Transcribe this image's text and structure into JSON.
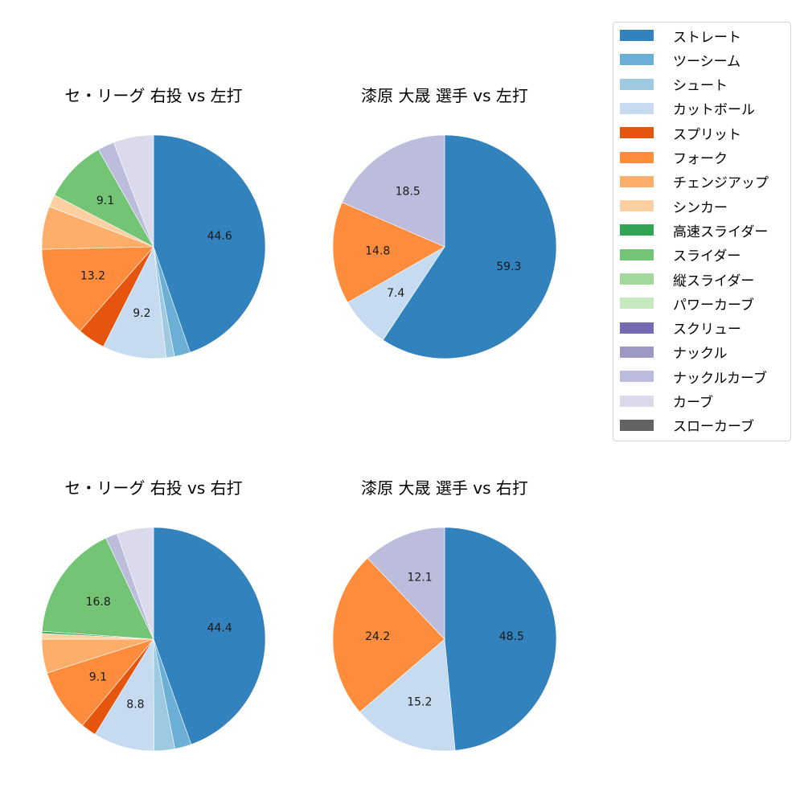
{
  "legend": {
    "items": [
      {
        "label": "ストレート",
        "color": "#3182bd"
      },
      {
        "label": "ツーシーム",
        "color": "#6baed6"
      },
      {
        "label": "シュート",
        "color": "#9ecae1"
      },
      {
        "label": "カットボール",
        "color": "#c6dbef"
      },
      {
        "label": "スプリット",
        "color": "#e6550d"
      },
      {
        "label": "フォーク",
        "color": "#fd8d3c"
      },
      {
        "label": "チェンジアップ",
        "color": "#fdae6b"
      },
      {
        "label": "シンカー",
        "color": "#fdd0a2"
      },
      {
        "label": "高速スライダー",
        "color": "#31a354"
      },
      {
        "label": "スライダー",
        "color": "#74c476"
      },
      {
        "label": "縦スライダー",
        "color": "#a1d99b"
      },
      {
        "label": "パワーカーブ",
        "color": "#c7e9c0"
      },
      {
        "label": "スクリュー",
        "color": "#756bb1"
      },
      {
        "label": "ナックル",
        "color": "#9e9ac8"
      },
      {
        "label": "ナックルカーブ",
        "color": "#bcbddc"
      },
      {
        "label": "カーブ",
        "color": "#dadaeb"
      },
      {
        "label": "スローカーブ",
        "color": "#636363"
      }
    ]
  },
  "panels": [
    {
      "title": "セ・リーグ 右投 vs 左打"
    },
    {
      "title": "漆原 大晟 選手 vs 左打"
    },
    {
      "title": "セ・リーグ 右投 vs 右打"
    },
    {
      "title": "漆原 大晟 選手 vs 右打"
    }
  ],
  "chart_data": [
    {
      "type": "pie",
      "title": "セ・リーグ 右投 vs 左打",
      "categories": [
        "ストレート",
        "ツーシーム",
        "シュート",
        "カットボール",
        "スプリット",
        "フォーク",
        "チェンジアップ",
        "シンカー",
        "スライダー",
        "ナックルカーブ",
        "カーブ"
      ],
      "values": [
        44.6,
        2.3,
        1.2,
        9.2,
        4.0,
        13.2,
        6.2,
        1.8,
        9.1,
        2.4,
        5.8
      ],
      "labels_shown": [
        "44.6",
        "",
        "",
        "9.2",
        "",
        "13.2",
        "",
        "",
        "9.1",
        "",
        ""
      ],
      "start_angle": 90,
      "direction": "clockwise"
    },
    {
      "type": "pie",
      "title": "漆原 大晟 選手 vs 左打",
      "categories": [
        "ストレート",
        "カットボール",
        "フォーク",
        "ナックルカーブ"
      ],
      "values": [
        59.3,
        7.4,
        14.8,
        18.5
      ],
      "labels_shown": [
        "59.3",
        "7.4",
        "14.8",
        "18.5"
      ],
      "start_angle": 90,
      "direction": "clockwise"
    },
    {
      "type": "pie",
      "title": "セ・リーグ 右投 vs 右打",
      "categories": [
        "ストレート",
        "ツーシーム",
        "シュート",
        "カットボール",
        "スプリット",
        "フォーク",
        "チェンジアップ",
        "シンカー",
        "高速スライダー",
        "スライダー",
        "ナックルカーブ",
        "カーブ"
      ],
      "values": [
        44.4,
        2.4,
        3.0,
        8.8,
        2.2,
        9.1,
        4.9,
        0.8,
        0.3,
        16.8,
        1.7,
        5.3
      ],
      "labels_shown": [
        "44.4",
        "",
        "",
        "8.8",
        "",
        "9.1",
        "",
        "",
        "",
        "16.8",
        "",
        ""
      ],
      "start_angle": 90,
      "direction": "clockwise"
    },
    {
      "type": "pie",
      "title": "漆原 大晟 選手 vs 右打",
      "categories": [
        "ストレート",
        "カットボール",
        "フォーク",
        "ナックルカーブ"
      ],
      "values": [
        48.5,
        15.2,
        24.2,
        12.1
      ],
      "labels_shown": [
        "48.5",
        "15.2",
        "24.2",
        "12.1"
      ],
      "start_angle": 90,
      "direction": "clockwise"
    }
  ]
}
